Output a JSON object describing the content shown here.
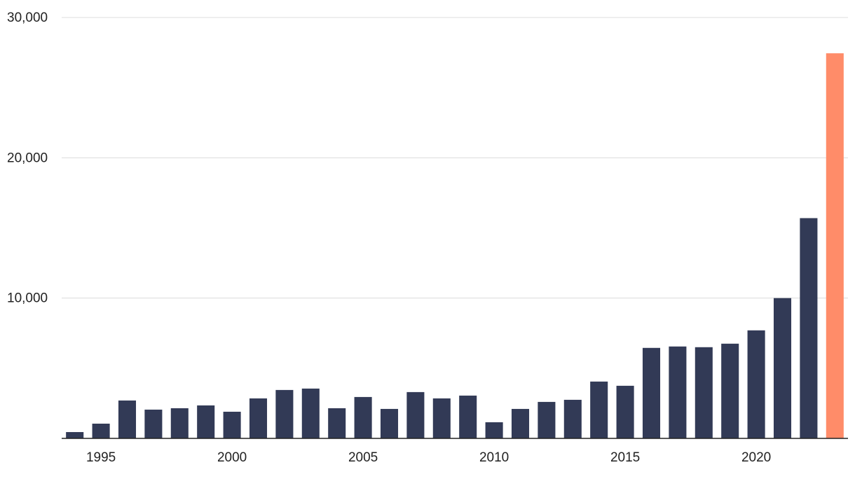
{
  "chart_data": {
    "type": "bar",
    "x": [
      1994,
      1995,
      1996,
      1997,
      1998,
      1999,
      2000,
      2001,
      2002,
      2003,
      2004,
      2005,
      2006,
      2007,
      2008,
      2009,
      2010,
      2011,
      2012,
      2013,
      2014,
      2015,
      2016,
      2017,
      2018,
      2019,
      2020,
      2021,
      2022,
      2023
    ],
    "values": [
      450,
      1050,
      2700,
      2050,
      2150,
      2350,
      1900,
      2850,
      3450,
      3550,
      2150,
      2950,
      2100,
      3300,
      2850,
      3050,
      1150,
      2100,
      2600,
      2750,
      4050,
      3750,
      6450,
      6550,
      6500,
      6750,
      7700,
      10000,
      15700,
      27450
    ],
    "colors": [
      "#323a56",
      "#323a56",
      "#323a56",
      "#323a56",
      "#323a56",
      "#323a56",
      "#323a56",
      "#323a56",
      "#323a56",
      "#323a56",
      "#323a56",
      "#323a56",
      "#323a56",
      "#323a56",
      "#323a56",
      "#323a56",
      "#323a56",
      "#323a56",
      "#323a56",
      "#323a56",
      "#323a56",
      "#323a56",
      "#323a56",
      "#323a56",
      "#323a56",
      "#323a56",
      "#323a56",
      "#323a56",
      "#323a56",
      "#ff8c69"
    ],
    "xlim": [
      1993.5,
      2023.5
    ],
    "xticks": [
      1995,
      2000,
      2005,
      2010,
      2015,
      2020
    ],
    "ylim": [
      0,
      30000
    ],
    "yticks": [
      {
        "value": 10000,
        "label": "10,000"
      },
      {
        "value": 20000,
        "label": "20,000"
      },
      {
        "value": 30000,
        "label": "30,000"
      }
    ],
    "grid": true
  }
}
